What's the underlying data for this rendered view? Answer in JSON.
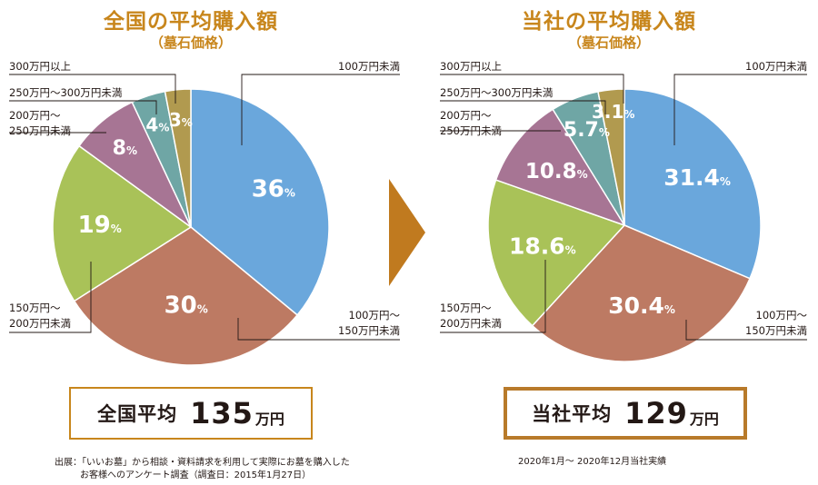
{
  "colors": {
    "slices": [
      "#6aa7dc",
      "#bd7a63",
      "#a9c258",
      "#a77594",
      "#6fa6a5",
      "#b19a4f"
    ],
    "title": "#c8861c",
    "arrow": "#c07a1f"
  },
  "chart_data": [
    {
      "type": "pie",
      "title": "全国の平均購入額",
      "subtitle": "（墓石価格）",
      "categories": [
        "100万円未満",
        "100万円〜150万円未満",
        "150万円〜200万円未満",
        "200万円〜250万円未満",
        "250万円〜300万円未満",
        "300万円以上"
      ],
      "category_lines": [
        [
          "100万円未満"
        ],
        [
          "100万円〜",
          "150万円未満"
        ],
        [
          "150万円〜",
          "200万円未満"
        ],
        [
          "200万円〜",
          "250万円未満"
        ],
        [
          "250万円〜300万円未満"
        ],
        [
          "300万円以上"
        ]
      ],
      "values": [
        36,
        30,
        19,
        8,
        4,
        3
      ],
      "value_labels": [
        "36",
        "30",
        "19",
        "8",
        "4",
        "3"
      ],
      "unit": "%",
      "average": {
        "label": "全国平均",
        "value": "135",
        "unit": "万円"
      },
      "note": [
        "出展：「いいお墓」から相談・資料請求を利用して実際にお墓を購入した",
        "お客様へのアンケート調査（調査日：2015年1月27日）"
      ]
    },
    {
      "type": "pie",
      "title": "当社の平均購入額",
      "subtitle": "（墓石価格）",
      "categories": [
        "100万円未満",
        "100万円〜150万円未満",
        "150万円〜200万円未満",
        "200万円〜250万円未満",
        "250万円〜300万円未満",
        "300万円以上"
      ],
      "category_lines": [
        [
          "100万円未満"
        ],
        [
          "100万円〜",
          "150万円未満"
        ],
        [
          "150万円〜",
          "200万円未満"
        ],
        [
          "200万円〜",
          "250万円未満"
        ],
        [
          "250万円〜300万円未満"
        ],
        [
          "300万円以上"
        ]
      ],
      "values": [
        31.4,
        30.4,
        18.6,
        10.8,
        5.7,
        3.1
      ],
      "value_labels": [
        "31.4",
        "30.4",
        "18.6",
        "10.8",
        "5.7",
        "3.1"
      ],
      "unit": "%",
      "average": {
        "label": "当社平均",
        "value": "129",
        "unit": "万円"
      },
      "note": [
        "2020年1月〜 2020年12月当社実績"
      ]
    }
  ]
}
